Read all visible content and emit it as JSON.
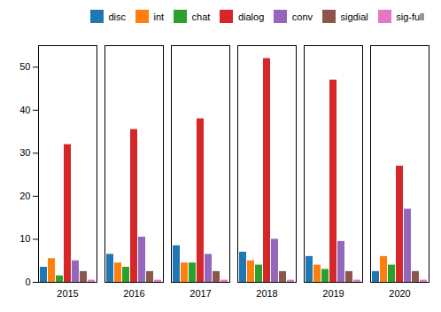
{
  "chart_data": {
    "type": "bar",
    "categories": [
      "2015",
      "2016",
      "2017",
      "2018",
      "2019",
      "2020"
    ],
    "series": [
      {
        "name": "disc",
        "color": "#1f77b4",
        "values": [
          3.5,
          6.5,
          8.5,
          7.0,
          6.0,
          2.5
        ]
      },
      {
        "name": "int",
        "color": "#ff7f0e",
        "values": [
          5.5,
          4.5,
          4.5,
          5.0,
          4.0,
          6.0
        ]
      },
      {
        "name": "chat",
        "color": "#2ca02c",
        "values": [
          1.5,
          3.5,
          4.5,
          4.0,
          3.0,
          4.0
        ]
      },
      {
        "name": "dialog",
        "color": "#d62728",
        "values": [
          32,
          35.5,
          38,
          52,
          47,
          27
        ]
      },
      {
        "name": "conv",
        "color": "#9467bd",
        "values": [
          5.0,
          10.5,
          6.5,
          10.0,
          9.5,
          17.0
        ]
      },
      {
        "name": "sigdial",
        "color": "#8c564b",
        "values": [
          2.5,
          2.5,
          2.5,
          2.5,
          2.5,
          2.5
        ]
      },
      {
        "name": "sig-full",
        "color": "#e377c2",
        "values": [
          0.5,
          0.5,
          0.5,
          0.5,
          0.5,
          0.5
        ]
      }
    ],
    "ylim": [
      0,
      55
    ],
    "yticks": [
      0,
      10,
      20,
      30,
      40,
      50
    ],
    "legend": "upper right",
    "grid": false
  }
}
